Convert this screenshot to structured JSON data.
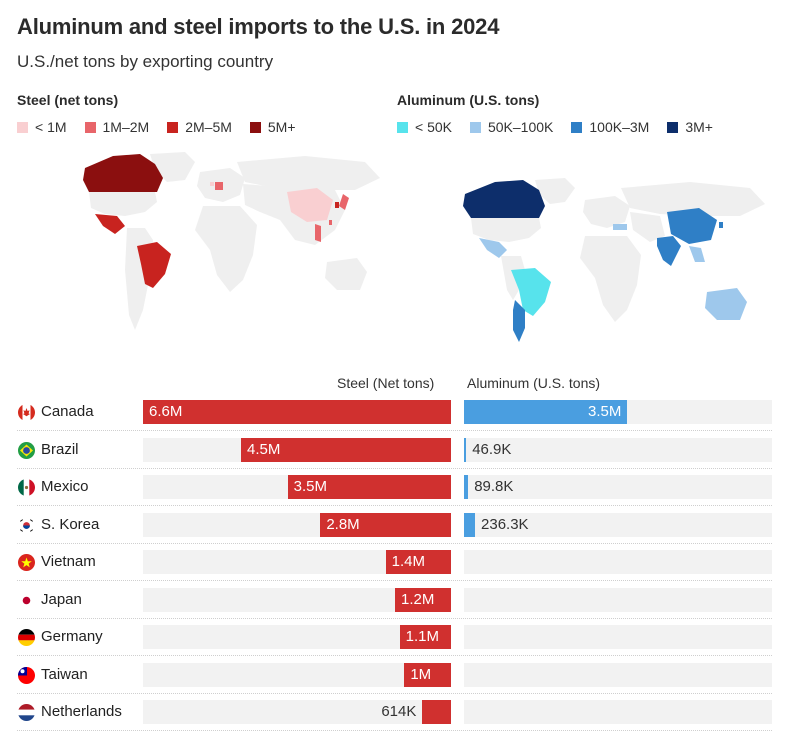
{
  "header": {
    "title": "Aluminum and steel imports to the U.S. in 2024",
    "subtitle": "U.S./net tons by exporting country"
  },
  "legends": {
    "steel": {
      "title": "Steel (net tons)",
      "items": [
        {
          "label": "< 1M",
          "color": "#f9cfd1"
        },
        {
          "label": "1M–2M",
          "color": "#e8656a"
        },
        {
          "label": "2M–5M",
          "color": "#c8231f"
        },
        {
          "label": "5M+",
          "color": "#8b0f0f"
        }
      ]
    },
    "aluminum": {
      "title": "Aluminum (U.S. tons)",
      "items": [
        {
          "label": "< 50K",
          "color": "#57e3ec"
        },
        {
          "label": "50K–100K",
          "color": "#9ec8ec"
        },
        {
          "label": "100K–3M",
          "color": "#2f7fc6"
        },
        {
          "label": "3M+",
          "color": "#0d2e6b"
        }
      ]
    }
  },
  "colors": {
    "land": "#efefef",
    "steel_bar": "#d0302f",
    "alu_bar": "#4a9ee0",
    "track": "#f2f2f2"
  },
  "chart_data": {
    "type": "bar",
    "orientation": "horizontal",
    "categories": [
      "Canada",
      "Brazil",
      "Mexico",
      "S. Korea",
      "Vietnam",
      "Japan",
      "Germany",
      "Taiwan",
      "Netherlands"
    ],
    "series": [
      {
        "name": "Steel (Net tons)",
        "values": [
          6600000,
          4500000,
          3500000,
          2800000,
          1400000,
          1200000,
          1100000,
          1000000,
          614000
        ],
        "labels": [
          "6.6M",
          "4.5M",
          "3.5M",
          "2.8M",
          "1.4M",
          "1.2M",
          "1.1M",
          "1M",
          "614K"
        ],
        "max": 6600000
      },
      {
        "name": "Aluminum (U.S. tons)",
        "values": [
          3500000,
          46900,
          89800,
          236300,
          null,
          null,
          null,
          null,
          null
        ],
        "labels": [
          "3.5M",
          "46.9K",
          "89.8K",
          "236.3K",
          "",
          "",
          "",
          "",
          ""
        ],
        "max": 6600000
      }
    ],
    "flags": [
      "canada-flag-icon",
      "brazil-flag-icon",
      "mexico-flag-icon",
      "south-korea-flag-icon",
      "vietnam-flag-icon",
      "japan-flag-icon",
      "germany-flag-icon",
      "taiwan-flag-icon",
      "netherlands-flag-icon"
    ]
  }
}
